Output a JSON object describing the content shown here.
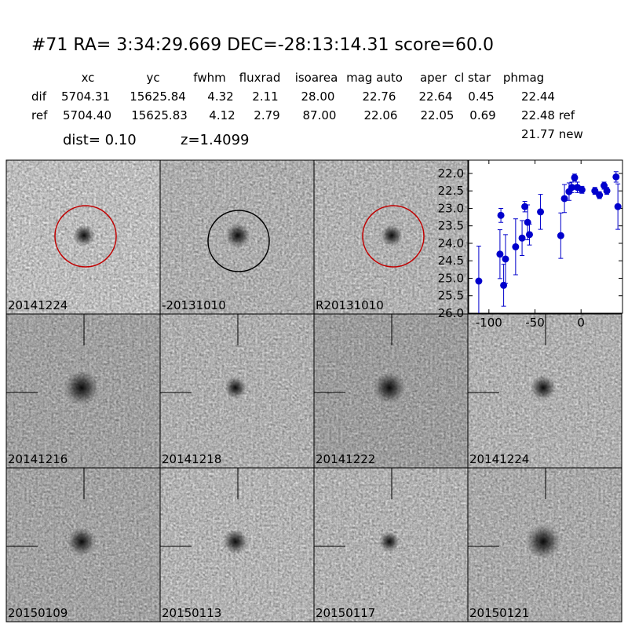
{
  "header": {
    "title": "#71   RA= 3:34:29.669 DEC=-28:13:14.31       score=60.0",
    "dist": "dist=  0.10",
    "z": "z=1.4099",
    "extra": "21.77 new"
  },
  "table": {
    "columns": [
      "xc",
      "yc",
      "fwhm",
      "fluxrad",
      "isoarea",
      "mag auto",
      "aper",
      "cl star",
      "phmag"
    ],
    "rows": [
      [
        "dif",
        "5704.31",
        "15625.84",
        "4.32",
        "2.11",
        "28.00",
        "22.76",
        "22.64",
        "0.45",
        "22.44"
      ],
      [
        "ref",
        "5704.40",
        "15625.83",
        "4.12",
        "2.79",
        "87.00",
        "22.06",
        "22.05",
        "0.69",
        "22.48 ref"
      ]
    ]
  },
  "panels": [
    {
      "label": "20141224",
      "color": "#000000"
    },
    {
      "label": "-20131010",
      "color": "#000000"
    },
    {
      "label": "R20131010",
      "color": "#000000"
    },
    {
      "label": "20141216",
      "color": "#000000"
    },
    {
      "label": "20141218",
      "color": "#000000"
    },
    {
      "label": "20141222",
      "color": "#000000"
    },
    {
      "label": "20141224",
      "color": "#ff0000"
    },
    {
      "label": "20150109",
      "color": "#000000"
    },
    {
      "label": "20150113",
      "color": "#000000"
    },
    {
      "label": "20150117",
      "color": "#000000"
    },
    {
      "label": "20150121",
      "color": "#000000"
    }
  ],
  "chart_data": {
    "type": "scatter",
    "x": [
      -111,
      -88,
      -87,
      -84,
      -82,
      -71,
      -64,
      -61,
      -58,
      -56,
      -44,
      -22,
      -18,
      -13,
      -10,
      -7,
      -4,
      1,
      15,
      20,
      25,
      28,
      38,
      40
    ],
    "series": [
      {
        "color": "#0000cc",
        "values": [
          25.08,
          24.31,
          23.2,
          25.2,
          24.45,
          24.1,
          23.85,
          22.95,
          23.4,
          23.75,
          23.1,
          23.78,
          22.72,
          22.52,
          22.4,
          22.12,
          22.4,
          22.47,
          22.5,
          22.62,
          22.35,
          22.5,
          22.1,
          22.95
        ],
        "errors": [
          1.0,
          0.7,
          0.2,
          0.6,
          0.7,
          0.8,
          0.5,
          0.15,
          0.5,
          0.3,
          0.5,
          0.65,
          0.4,
          0.25,
          0.15,
          0.1,
          0.15,
          0.1,
          0.1,
          0.1,
          0.1,
          0.1,
          0.15,
          0.65
        ]
      }
    ],
    "xlim": [
      -122,
      45
    ],
    "xticks": [
      -100,
      -50,
      0
    ],
    "ylim": [
      26,
      21.62
    ],
    "yticks": [
      {
        "value": 22,
        "label": "22.0"
      },
      {
        "value": 22.5,
        "label": "22.5"
      },
      {
        "value": 23,
        "label": "23.0"
      },
      {
        "value": 23.5,
        "label": "23.5"
      },
      {
        "value": 24,
        "label": "24.0"
      },
      {
        "value": 24.5,
        "label": "24.5"
      },
      {
        "value": 25,
        "label": "25.0"
      },
      {
        "value": 25.5,
        "label": "25.5"
      },
      {
        "value": 26,
        "label": "26.0"
      }
    ]
  }
}
